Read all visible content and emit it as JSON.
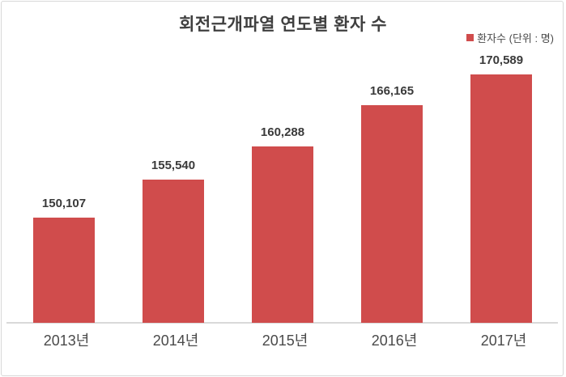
{
  "title": "회전근개파열 연도별 환자 수",
  "legend": {
    "label": "환자수 (단위 : 명)",
    "swatch_color": "#d04c4c",
    "position": "top-right"
  },
  "colors": {
    "bar": "#d04c4c",
    "title_text": "#3f3f3f",
    "value_label_text": "#3a3a3a",
    "axis_label_text": "#4a4a4a",
    "axis_line": "#d9d9d9",
    "frame_border": "#d8d8d8",
    "background": "#ffffff"
  },
  "chart_data": {
    "type": "bar",
    "title": "회전근개파열 연도별 환자 수",
    "categories": [
      "2013년",
      "2014년",
      "2015년",
      "2016년",
      "2017년"
    ],
    "values": [
      150107,
      155540,
      160288,
      166165,
      170589
    ],
    "value_labels": [
      "150,107",
      "155,540",
      "160,288",
      "166,165",
      "170,589"
    ],
    "series_name": "환자수 (단위 : 명)",
    "xlabel": "",
    "ylabel": "",
    "ylim": [
      135000,
      175000
    ],
    "grid": false,
    "legend_position": "top-right",
    "bar_color": "#d04c4c"
  }
}
